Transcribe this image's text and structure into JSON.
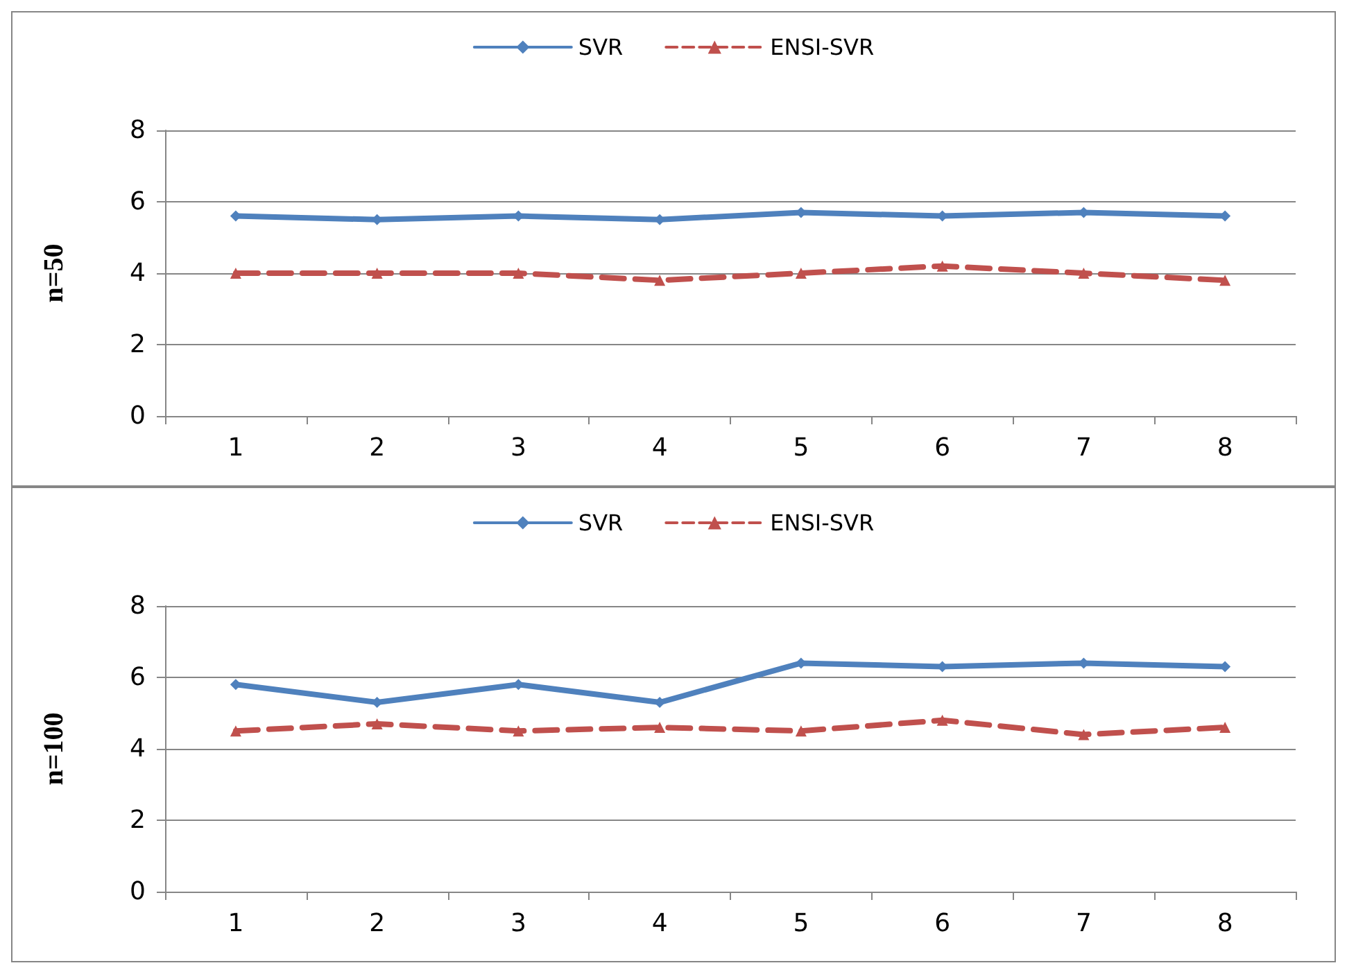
{
  "chart_data": [
    {
      "type": "line",
      "ylabel": "n=50",
      "categories": [
        "1",
        "2",
        "3",
        "4",
        "5",
        "6",
        "7",
        "8"
      ],
      "series": [
        {
          "name": "SVR",
          "color": "#4f81bd",
          "marker": "diamond",
          "line_style": "solid",
          "values": [
            5.6,
            5.5,
            5.6,
            5.5,
            5.7,
            5.6,
            5.7,
            5.6
          ]
        },
        {
          "name": "ENSI-SVR",
          "color": "#c0504d",
          "marker": "triangle",
          "line_style": "dashed",
          "values": [
            4.0,
            4.0,
            4.0,
            3.8,
            4.0,
            4.2,
            4.0,
            3.8
          ]
        }
      ],
      "ylim": [
        0,
        8
      ],
      "yticks": [
        0,
        2,
        4,
        6,
        8
      ],
      "grid": "y",
      "legend": "top"
    },
    {
      "type": "line",
      "ylabel": "n=100",
      "categories": [
        "1",
        "2",
        "3",
        "4",
        "5",
        "6",
        "7",
        "8"
      ],
      "series": [
        {
          "name": "SVR",
          "color": "#4f81bd",
          "marker": "diamond",
          "line_style": "solid",
          "values": [
            5.8,
            5.3,
            5.8,
            5.3,
            6.4,
            6.3,
            6.4,
            6.3
          ]
        },
        {
          "name": "ENSI-SVR",
          "color": "#c0504d",
          "marker": "triangle",
          "line_style": "dashed",
          "values": [
            4.5,
            4.7,
            4.5,
            4.6,
            4.5,
            4.8,
            4.4,
            4.6
          ]
        }
      ],
      "ylim": [
        0,
        8
      ],
      "yticks": [
        0,
        2,
        4,
        6,
        8
      ],
      "grid": "y",
      "legend": "top"
    }
  ]
}
